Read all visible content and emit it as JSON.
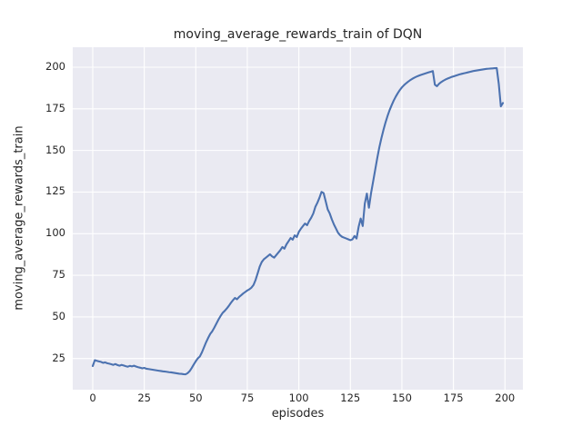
{
  "figure": {
    "title": "moving_average_rewards_train of DQN",
    "background": "#ffffff"
  },
  "chart_data": {
    "type": "line",
    "title": "moving_average_rewards_train of DQN",
    "xlabel": "episodes",
    "ylabel": "moving_average_rewards_train",
    "x_ticks": [
      0,
      25,
      50,
      75,
      100,
      125,
      150,
      175,
      200
    ],
    "y_ticks": [
      25,
      50,
      75,
      100,
      125,
      150,
      175,
      200
    ],
    "xlim": [
      -9.7,
      208.7
    ],
    "ylim": [
      6.3,
      212
    ],
    "grid": true,
    "legend": "none",
    "style": "seaborn-darkgrid",
    "axes_bg_color": "#EAEAF2",
    "grid_color": "#FFFFFF",
    "text_color": "#262626",
    "line_color": "#4C72B0",
    "series": [
      {
        "name": "moving_average_rewards_train",
        "x": [
          0,
          1,
          2,
          3,
          4,
          5,
          6,
          7,
          8,
          9,
          10,
          11,
          12,
          13,
          14,
          15,
          16,
          17,
          18,
          19,
          20,
          21,
          22,
          23,
          24,
          25,
          26,
          27,
          28,
          29,
          30,
          31,
          32,
          33,
          34,
          35,
          36,
          37,
          38,
          39,
          40,
          41,
          42,
          43,
          44,
          45,
          46,
          47,
          48,
          49,
          50,
          51,
          52,
          53,
          54,
          55,
          56,
          57,
          58,
          59,
          60,
          61,
          62,
          63,
          64,
          65,
          66,
          67,
          68,
          69,
          70,
          71,
          72,
          73,
          74,
          75,
          76,
          77,
          78,
          79,
          80,
          81,
          82,
          83,
          84,
          85,
          86,
          87,
          88,
          89,
          90,
          91,
          92,
          93,
          94,
          95,
          96,
          97,
          98,
          99,
          100,
          101,
          102,
          103,
          104,
          105,
          106,
          107,
          108,
          109,
          110,
          111,
          112,
          113,
          114,
          115,
          116,
          117,
          118,
          119,
          120,
          121,
          122,
          123,
          124,
          125,
          126,
          127,
          128,
          129,
          130,
          131,
          132,
          133,
          134,
          135,
          136,
          137,
          138,
          139,
          140,
          141,
          142,
          143,
          144,
          145,
          146,
          147,
          148,
          149,
          150,
          151,
          152,
          153,
          154,
          155,
          156,
          157,
          158,
          159,
          160,
          161,
          162,
          163,
          164,
          165,
          166,
          167,
          168,
          169,
          170,
          171,
          172,
          173,
          174,
          175,
          176,
          177,
          178,
          179,
          180,
          181,
          182,
          183,
          184,
          185,
          186,
          187,
          188,
          189,
          190,
          191,
          192,
          193,
          194,
          195,
          196,
          197,
          198,
          199
        ],
        "y": [
          20.5,
          24,
          23.6,
          23.3,
          23,
          22.4,
          22.7,
          22.2,
          21.9,
          21.6,
          21.2,
          21.7,
          21.1,
          20.7,
          21.2,
          20.8,
          20.4,
          20.1,
          20.6,
          20.3,
          20.7,
          20.2,
          19.8,
          19.5,
          19.1,
          19.4,
          18.9,
          18.7,
          18.5,
          18.3,
          18.1,
          17.9,
          17.7,
          17.5,
          17.3,
          17.2,
          17,
          16.8,
          16.7,
          16.5,
          16.3,
          16.1,
          15.9,
          15.8,
          15.6,
          15.5,
          16.2,
          17.4,
          19.3,
          21.4,
          23.4,
          25.1,
          26.3,
          28.8,
          31.8,
          34.8,
          37.4,
          39.8,
          41.4,
          43.6,
          46,
          48.4,
          50.5,
          52.4,
          53.6,
          55,
          56.6,
          58.4,
          60,
          61.4,
          60.6,
          62,
          63,
          64.1,
          65,
          65.9,
          66.6,
          67.6,
          69.2,
          72.2,
          76.1,
          80.2,
          83,
          84.6,
          85.6,
          86.6,
          87.6,
          86.4,
          85.6,
          87.1,
          88.6,
          90.1,
          92,
          91,
          93.6,
          95.5,
          97.4,
          96.4,
          99,
          98,
          101.1,
          103,
          104.6,
          106.1,
          105.1,
          107.6,
          109.6,
          112.1,
          116.1,
          118.6,
          121.6,
          125.1,
          124.4,
          119.6,
          114.6,
          112.1,
          108.6,
          105.6,
          103.1,
          100.6,
          99.1,
          98.1,
          97.6,
          97.1,
          96.6,
          96.1,
          96.6,
          98.6,
          97.1,
          104.1,
          109.1,
          104.6,
          118.1,
          124.1,
          115.6,
          124.1,
          131.1,
          138.1,
          145.1,
          151.6,
          157.1,
          162.1,
          166.6,
          170.6,
          174.1,
          177.1,
          179.9,
          182.3,
          184.4,
          186.3,
          187.9,
          189.2,
          190.3,
          191.3,
          192.2,
          193,
          193.7,
          194.3,
          194.8,
          195.3,
          195.7,
          196.1,
          196.5,
          196.9,
          197.3,
          197.7,
          189.5,
          188.6,
          190,
          191,
          191.8,
          192.5,
          193.1,
          193.6,
          194.1,
          194.5,
          194.9,
          195.3,
          195.7,
          196,
          196.3,
          196.6,
          196.9,
          197.2,
          197.5,
          197.8,
          198,
          198.2,
          198.4,
          198.6,
          198.8,
          199,
          199.1,
          199.2,
          199.3,
          199.4,
          199.5,
          190,
          176.5,
          178.5
        ]
      }
    ]
  }
}
